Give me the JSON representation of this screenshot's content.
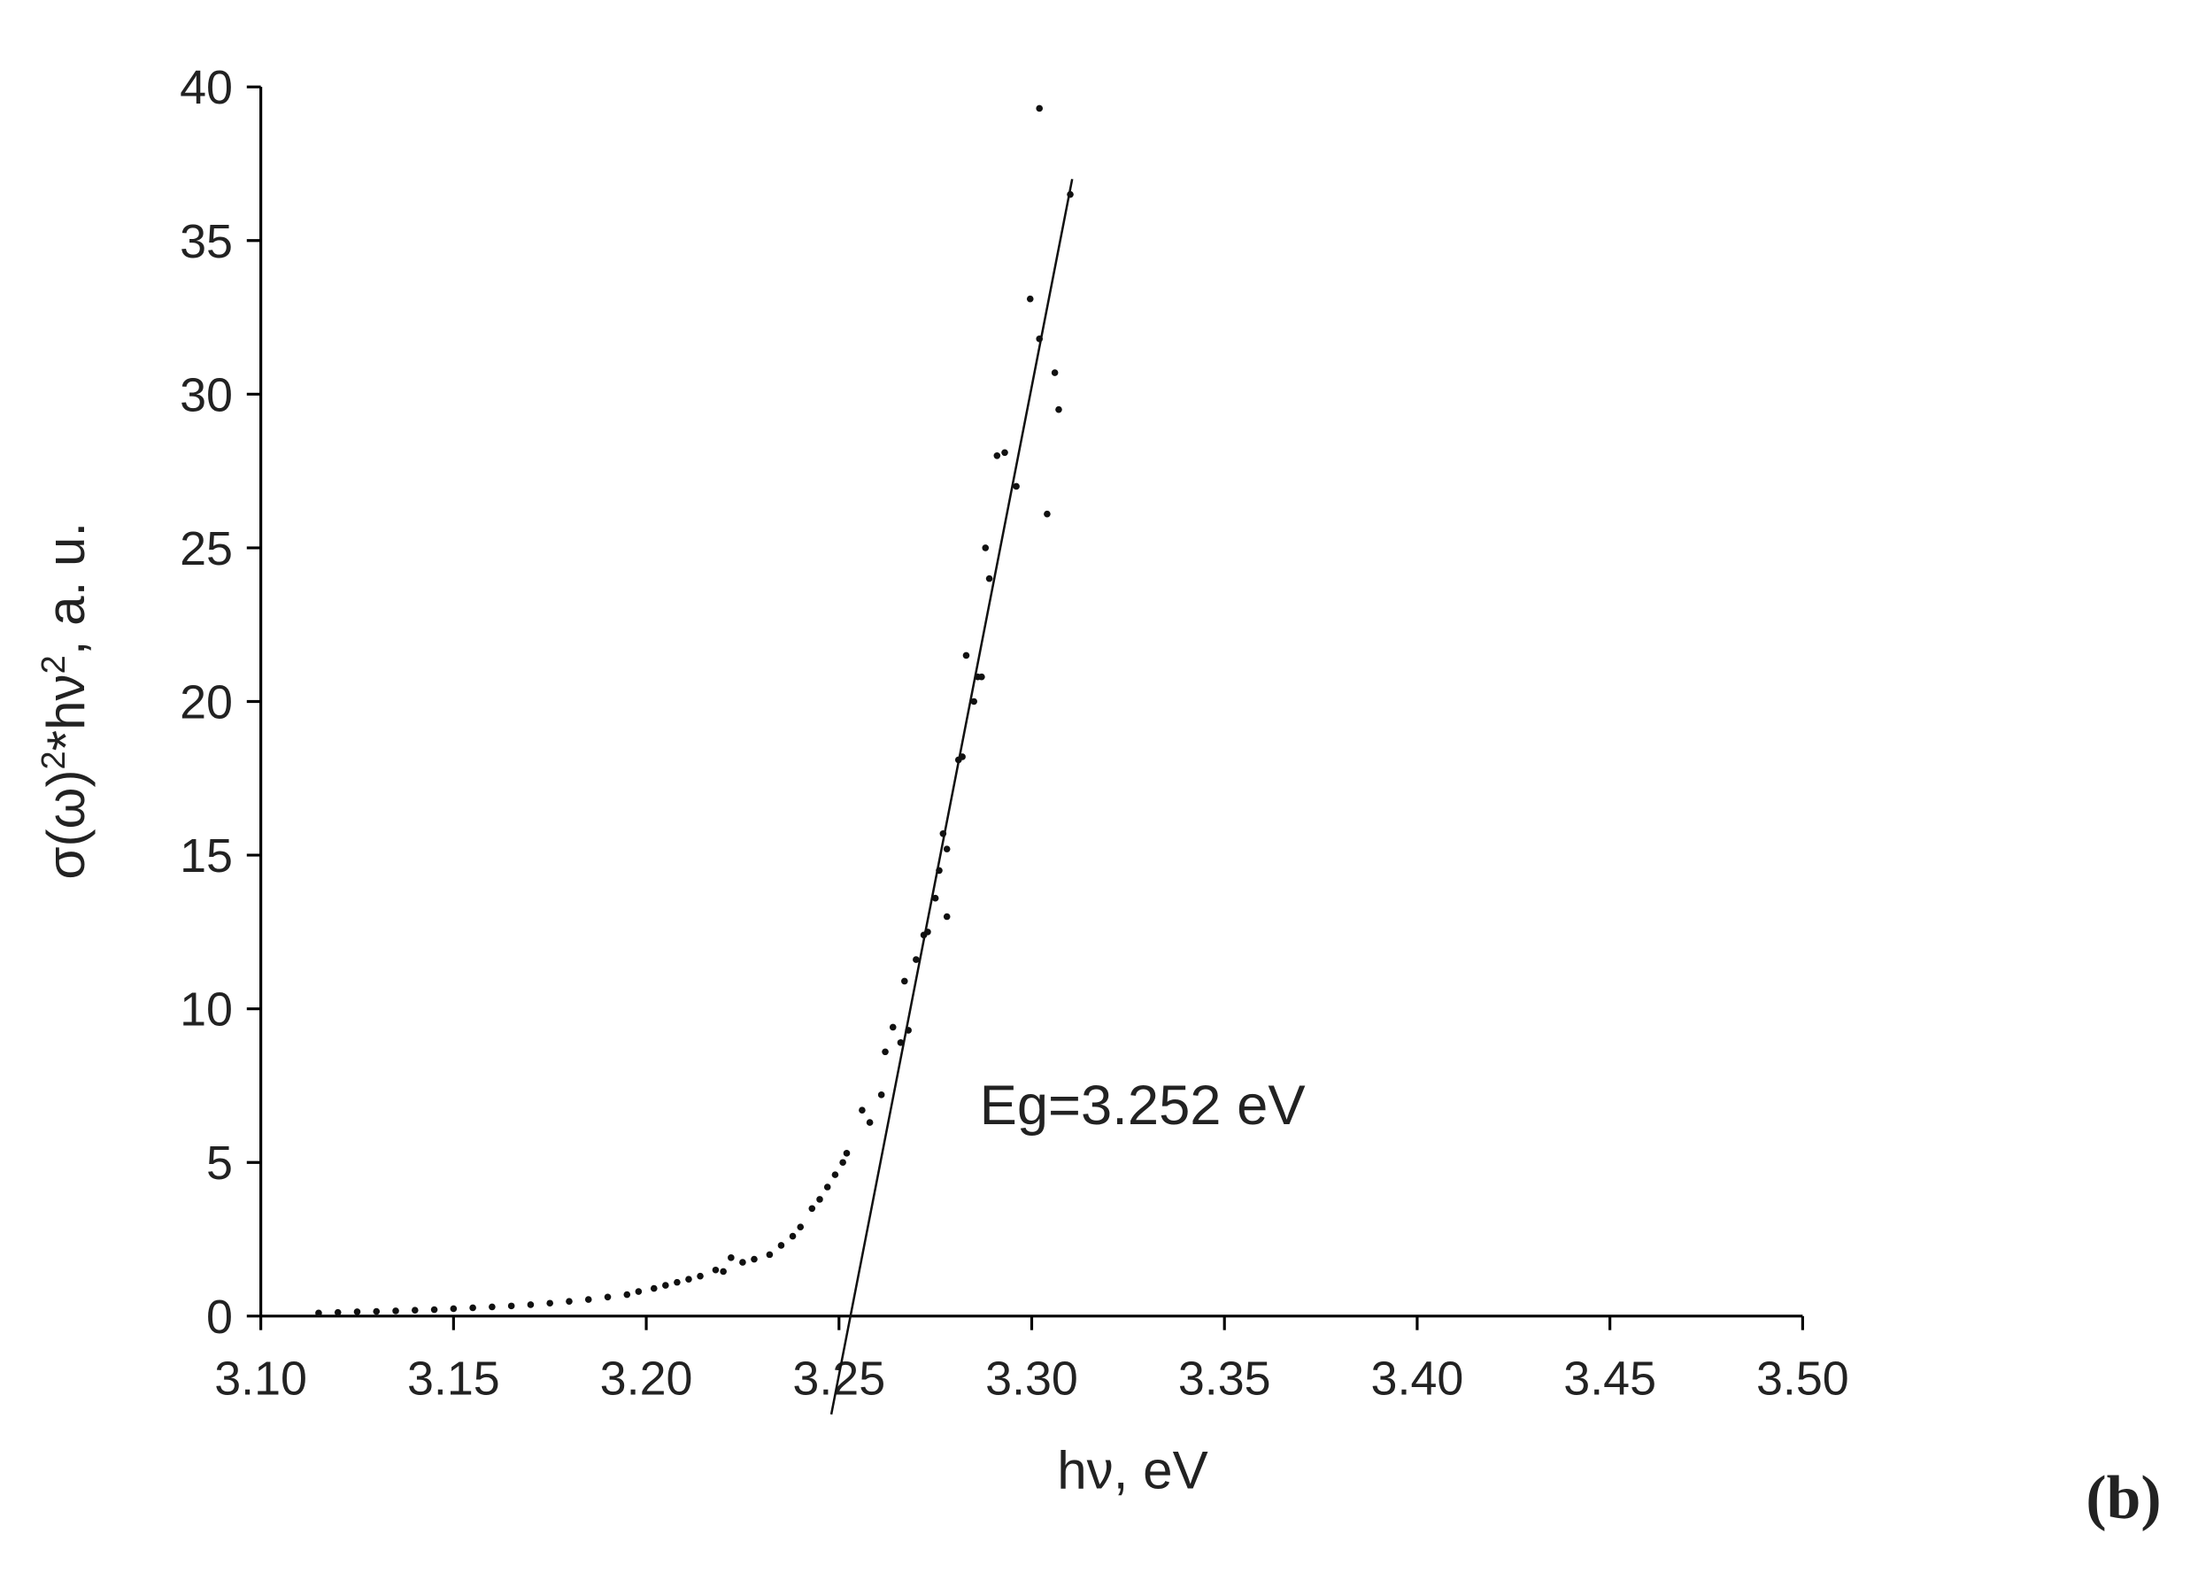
{
  "chart_data": {
    "type": "scatter",
    "x_label": "hν, eV",
    "y_label": [
      "σ(ω)",
      "2",
      "*hν",
      "2",
      ", a. u."
    ],
    "annotation": "Eg=3.252 eV",
    "panel_label": "(b)",
    "xlim": [
      3.1,
      3.5
    ],
    "ylim": [
      0,
      40
    ],
    "xticks": [
      {
        "value": 3.1,
        "label": "3.10"
      },
      3.15,
      {
        "value": 3.2,
        "label": "3.20"
      },
      3.25,
      {
        "value": 3.3,
        "label": "3.30"
      },
      3.35,
      {
        "value": 3.4,
        "label": "3.40"
      },
      3.45,
      {
        "value": 3.5,
        "label": "3.50"
      }
    ],
    "yticks": [
      0,
      5,
      10,
      15,
      20,
      25,
      30,
      35,
      40
    ],
    "series": [
      {
        "kind": "points",
        "color": "#111111",
        "x": [
          3.115,
          3.12,
          3.125,
          3.13,
          3.135,
          3.14,
          3.145,
          3.15,
          3.155,
          3.16,
          3.165,
          3.17,
          3.175,
          3.18,
          3.185,
          3.19,
          3.195,
          3.198,
          3.202,
          3.205,
          3.208,
          3.211,
          3.214,
          3.218,
          3.22,
          3.222,
          3.225,
          3.228,
          3.232,
          3.235,
          3.238,
          3.24,
          3.243,
          3.245,
          3.247,
          3.249,
          3.251,
          3.252,
          3.256,
          3.258,
          3.261,
          3.262,
          3.264,
          3.266,
          3.267,
          3.268,
          3.27,
          3.272,
          3.273,
          3.275,
          3.276,
          3.277,
          3.278,
          3.278,
          3.281,
          3.282,
          3.283,
          3.285,
          3.286,
          3.287,
          3.288,
          3.289,
          3.291,
          3.293,
          3.296,
          3.2996,
          3.302,
          3.302,
          3.304,
          3.306,
          3.307,
          3.31
        ],
        "values": [
          0.1,
          0.12,
          0.14,
          0.15,
          0.17,
          0.19,
          0.21,
          0.24,
          0.27,
          0.3,
          0.33,
          0.37,
          0.42,
          0.48,
          0.54,
          0.62,
          0.7,
          0.8,
          0.9,
          1.0,
          1.1,
          1.2,
          1.3,
          1.5,
          1.45,
          1.9,
          1.75,
          1.85,
          2.0,
          2.3,
          2.6,
          2.9,
          3.5,
          3.8,
          4.2,
          4.6,
          5.0,
          5.3,
          6.7,
          6.3,
          7.2,
          8.6,
          9.4,
          8.9,
          10.9,
          9.3,
          11.6,
          12.4,
          12.5,
          13.6,
          14.5,
          15.7,
          15.2,
          13.0,
          18.1,
          18.2,
          21.5,
          20.0,
          20.8,
          20.8,
          25.0,
          24.0,
          28.0,
          28.1,
          27.0,
          33.1,
          31.8,
          39.3,
          26.1,
          30.7,
          29.5,
          36.5
        ]
      },
      {
        "kind": "line",
        "color": "#111111",
        "x": [
          3.248,
          3.3105
        ],
        "values": [
          -3.2,
          37.0
        ]
      }
    ]
  }
}
